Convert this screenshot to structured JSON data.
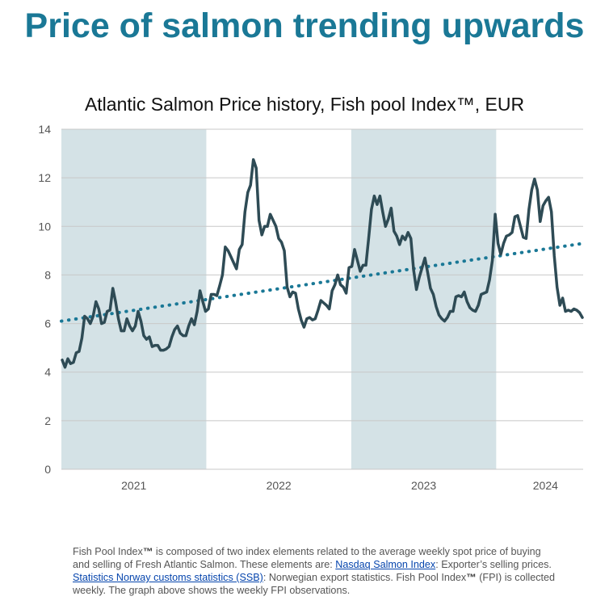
{
  "headline": "Price of salmon trending upwards",
  "chart_data": {
    "type": "line",
    "title": "Atlantic Salmon Price history, Fish pool Index™, EUR",
    "xlabel": "",
    "ylabel": "",
    "ylim": [
      0,
      14
    ],
    "yticks": [
      0,
      2,
      4,
      6,
      8,
      10,
      12,
      14
    ],
    "xlim": [
      2020.5,
      2024.1
    ],
    "year_labels": [
      {
        "label": "2021",
        "x": 2021.0
      },
      {
        "label": "2022",
        "x": 2022.0
      },
      {
        "label": "2023",
        "x": 2023.0
      },
      {
        "label": "2024",
        "x": 2023.84
      }
    ],
    "shaded_ranges": [
      [
        2020.5,
        2021.5
      ],
      [
        2022.5,
        2023.5
      ]
    ],
    "colors": {
      "series": "#2e4b55",
      "trend": "#1a7896",
      "shade": "#d4e2e6",
      "grid": "#c8c8c8"
    },
    "series": [
      {
        "name": "Fish Pool Index (weekly)",
        "values": [
          4.5,
          4.2,
          4.55,
          4.35,
          4.4,
          4.8,
          4.85,
          5.4,
          6.3,
          6.2,
          6.0,
          6.3,
          6.9,
          6.6,
          6.0,
          6.05,
          6.5,
          6.55,
          7.45,
          6.9,
          6.2,
          5.7,
          5.7,
          6.2,
          5.9,
          5.7,
          5.9,
          6.5,
          6.1,
          5.5,
          5.35,
          5.45,
          5.05,
          5.1,
          5.1,
          4.9,
          4.9,
          4.95,
          5.05,
          5.45,
          5.75,
          5.9,
          5.6,
          5.5,
          5.5,
          5.9,
          6.2,
          5.95,
          6.5,
          7.35,
          6.9,
          6.5,
          6.6,
          7.2,
          7.2,
          7.15,
          7.55,
          8.0,
          9.15,
          9.0,
          8.75,
          8.5,
          8.25,
          9.05,
          9.25,
          10.6,
          11.4,
          11.7,
          12.75,
          12.4,
          10.25,
          9.65,
          10.0,
          10.0,
          10.5,
          10.25,
          10.0,
          9.5,
          9.35,
          9.0,
          7.5,
          7.1,
          7.3,
          7.25,
          6.6,
          6.15,
          5.85,
          6.2,
          6.25,
          6.15,
          6.2,
          6.55,
          6.95,
          6.85,
          6.75,
          6.6,
          7.35,
          7.6,
          8.0,
          7.6,
          7.5,
          7.25,
          8.3,
          8.35,
          9.05,
          8.6,
          8.15,
          8.4,
          8.4,
          9.5,
          10.7,
          11.25,
          10.9,
          11.25,
          10.6,
          10.0,
          10.3,
          10.75,
          9.8,
          9.6,
          9.25,
          9.6,
          9.45,
          9.75,
          9.5,
          8.2,
          7.4,
          7.9,
          8.3,
          8.7,
          8.1,
          7.45,
          7.2,
          6.7,
          6.35,
          6.2,
          6.1,
          6.25,
          6.5,
          6.5,
          7.1,
          7.15,
          7.1,
          7.3,
          6.9,
          6.65,
          6.55,
          6.5,
          6.75,
          7.2,
          7.25,
          7.3,
          7.8,
          8.6,
          10.5,
          9.3,
          8.85,
          9.3,
          9.6,
          9.65,
          9.75,
          10.4,
          10.45,
          10.0,
          9.55,
          9.5,
          10.7,
          11.5,
          11.95,
          11.5,
          10.2,
          10.85,
          11.05,
          11.2,
          10.6,
          8.8,
          7.5,
          6.75,
          7.05,
          6.5,
          6.55,
          6.5,
          6.6,
          6.55,
          6.45,
          6.25
        ]
      }
    ],
    "trend": {
      "name": "Linear trend",
      "start": 6.1,
      "end": 9.3
    }
  },
  "footnote": {
    "p1": "Fish Pool Index",
    "tm1": "™",
    "p2": " is composed of two index elements related to the average weekly spot price of buying and selling of Fresh Atlantic Salmon. These elements are: ",
    "link1": "Nasdaq Salmon Index",
    "p3": ": Exporter’s selling prices. ",
    "link2": "Statistics Norway customs statistics (SSB)",
    "p4": ": Norwegian export statistics. Fish Pool Index",
    "tm2": "™",
    "p5": " (FPI) is collected weekly. The graph above shows the weekly FPI observations."
  }
}
